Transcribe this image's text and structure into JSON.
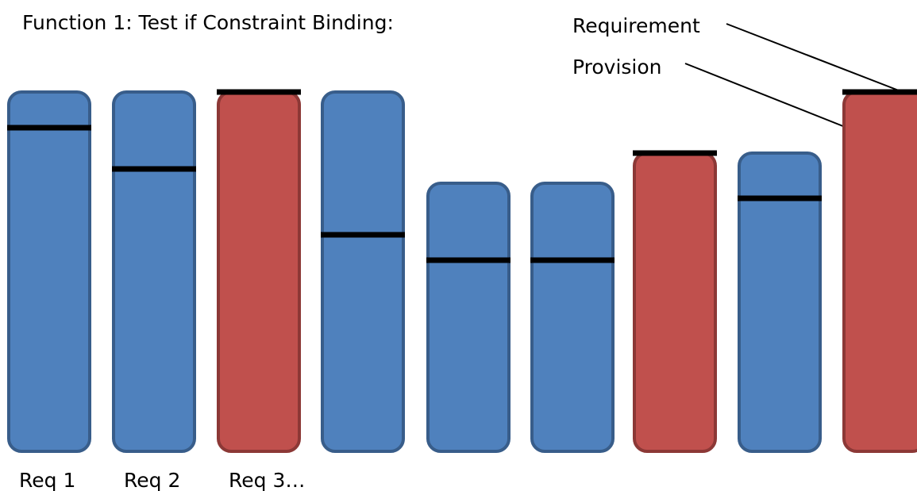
{
  "title": "Function 1: Test if Constraint Binding:",
  "legend": {
    "requirement_label": "Requirement",
    "provision_label": "Provision"
  },
  "colors": {
    "ok_fill": "#4f81bd",
    "ok_stroke": "#385d8a",
    "binding_fill": "#c0504d",
    "binding_stroke": "#8c3836",
    "requirement_line": "#000000"
  },
  "bars": [
    {
      "state": "ok",
      "label": "Req 1"
    },
    {
      "state": "ok",
      "label": "Req 2"
    },
    {
      "state": "binding",
      "label": "Req 3…"
    },
    {
      "state": "ok",
      "label": ""
    },
    {
      "state": "ok",
      "label": ""
    },
    {
      "state": "ok",
      "label": ""
    },
    {
      "state": "binding",
      "label": ""
    },
    {
      "state": "ok",
      "label": ""
    },
    {
      "state": "binding",
      "label": ""
    }
  ]
}
